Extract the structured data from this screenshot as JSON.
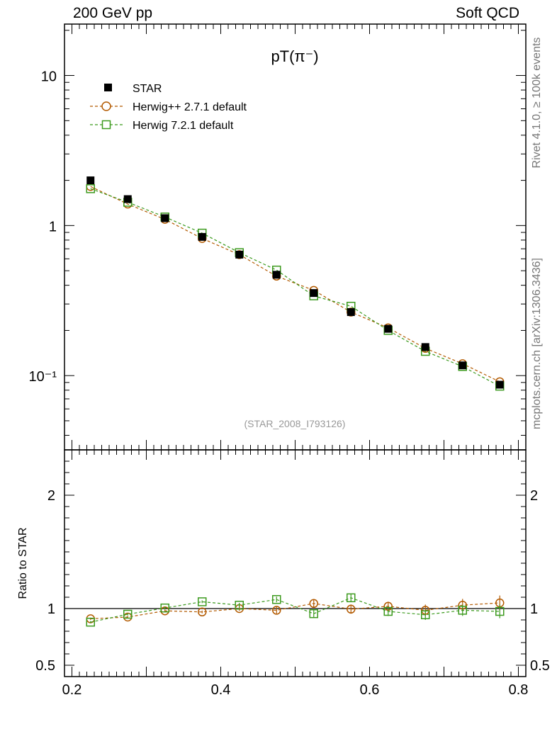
{
  "header": {
    "left": "200 GeV pp",
    "right": "Soft QCD"
  },
  "side_labels": {
    "top": "Rivet 4.1.0, ≥ 100k events",
    "bottom": "mcplots.cern.ch [arXiv:1306.3436]"
  },
  "chart_data": [
    {
      "type": "scatter",
      "title": "pT(π⁻)",
      "analysis_label": "(STAR_2008_I793126)",
      "yscale": "log",
      "xlim": [
        0.19,
        0.81
      ],
      "ylim": [
        0.032,
        22
      ],
      "x": [
        0.225,
        0.275,
        0.325,
        0.375,
        0.425,
        0.475,
        0.525,
        0.575,
        0.625,
        0.675,
        0.725,
        0.775
      ],
      "y_tick_labels": [
        "10⁻¹",
        "1",
        "10"
      ],
      "series": [
        {
          "name": "STAR",
          "marker": "filled-square",
          "color": "#000000",
          "values": [
            2.0,
            1.5,
            1.12,
            0.84,
            0.64,
            0.47,
            0.355,
            0.265,
            0.205,
            0.155,
            0.117,
            0.087
          ]
        },
        {
          "name": "Herwig++ 2.7.1 default",
          "marker": "open-circle",
          "color": "#b35a00",
          "values": [
            1.82,
            1.39,
            1.1,
            0.82,
            0.64,
            0.46,
            0.37,
            0.265,
            0.208,
            0.152,
            0.12,
            0.091
          ]
        },
        {
          "name": "Herwig 7.2.1 default",
          "marker": "open-square",
          "color": "#3c9a1e",
          "values": [
            1.76,
            1.43,
            1.14,
            0.89,
            0.66,
            0.505,
            0.34,
            0.29,
            0.2,
            0.145,
            0.115,
            0.085
          ]
        }
      ]
    },
    {
      "type": "scatter",
      "ylabel": "Ratio to STAR",
      "xlim": [
        0.19,
        0.81
      ],
      "ylim": [
        0.4,
        2.4
      ],
      "x": [
        0.225,
        0.275,
        0.325,
        0.375,
        0.425,
        0.475,
        0.525,
        0.575,
        0.625,
        0.675,
        0.725,
        0.775
      ],
      "x_tick_labels": [
        "0.2",
        "0.4",
        "0.6",
        "0.8"
      ],
      "y_tick_labels": [
        "0.5",
        "1",
        "2"
      ],
      "reference_line": 1,
      "series": [
        {
          "name": "Herwig++ 2.7.1 default",
          "marker": "open-circle",
          "color": "#b35a00",
          "values": [
            0.91,
            0.925,
            0.98,
            0.97,
            1.0,
            0.985,
            1.045,
            0.995,
            1.02,
            0.985,
            1.03,
            1.05
          ],
          "errors": [
            0.01,
            0.01,
            0.012,
            0.012,
            0.02,
            0.03,
            0.035,
            0.04,
            0.04,
            0.05,
            0.055,
            0.065
          ]
        },
        {
          "name": "Herwig 7.2.1 default",
          "marker": "open-square",
          "color": "#3c9a1e",
          "values": [
            0.88,
            0.95,
            1.005,
            1.06,
            1.03,
            1.08,
            0.955,
            1.095,
            0.975,
            0.945,
            0.985,
            0.975
          ],
          "errors": [
            0.01,
            0.01,
            0.012,
            0.012,
            0.02,
            0.025,
            0.03,
            0.035,
            0.04,
            0.045,
            0.05,
            0.06
          ]
        }
      ]
    }
  ]
}
